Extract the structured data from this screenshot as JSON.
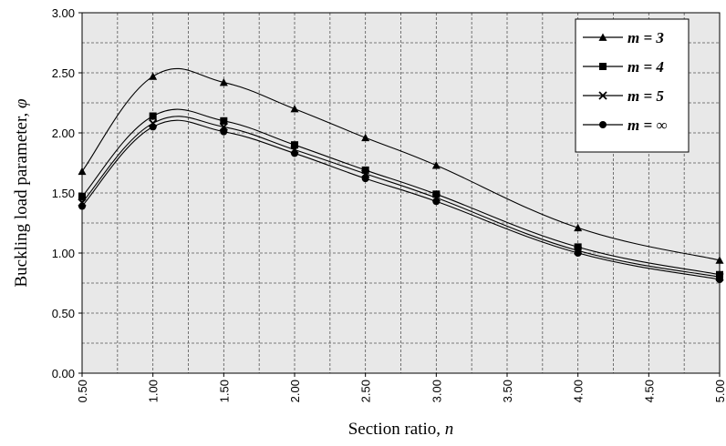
{
  "chart_data": {
    "type": "line",
    "xlabel": "Section ratio, ",
    "xlabel_var": "n",
    "ylabel": "Buckling load parameter, ",
    "ylabel_var": "φ",
    "xlim": [
      0.5,
      5.0
    ],
    "ylim": [
      0.0,
      3.0
    ],
    "x_ticks": [
      "0.50",
      "1.00",
      "1.50",
      "2.00",
      "2.50",
      "3.00",
      "3.50",
      "4.00",
      "4.50",
      "5.00"
    ],
    "y_ticks": [
      "0.00",
      "0.50",
      "1.00",
      "1.50",
      "2.00",
      "2.50",
      "3.00"
    ],
    "grid": true,
    "plot_background": "#e8e8e8",
    "legend_position": "top-right",
    "series": [
      {
        "name": "m = 3",
        "marker": "triangle",
        "x": [
          0.5,
          1.0,
          1.5,
          2.0,
          2.5,
          3.0,
          4.0,
          5.0
        ],
        "y": [
          1.68,
          2.47,
          2.42,
          2.2,
          1.96,
          1.73,
          1.21,
          0.94
        ]
      },
      {
        "name": "m = 4",
        "marker": "square",
        "x": [
          0.5,
          1.0,
          1.5,
          2.0,
          2.5,
          3.0,
          4.0,
          5.0
        ],
        "y": [
          1.47,
          2.14,
          2.1,
          1.9,
          1.69,
          1.49,
          1.05,
          0.82
        ]
      },
      {
        "name": "m = 5",
        "marker": "x",
        "x": [
          0.5,
          1.0,
          1.5,
          2.0,
          2.5,
          3.0,
          4.0,
          5.0
        ],
        "y": [
          1.42,
          2.08,
          2.05,
          1.86,
          1.66,
          1.46,
          1.02,
          0.8
        ]
      },
      {
        "name": "m = ∞",
        "marker": "circle",
        "x": [
          0.5,
          1.0,
          1.5,
          2.0,
          2.5,
          3.0,
          4.0,
          5.0
        ],
        "y": [
          1.39,
          2.05,
          2.01,
          1.83,
          1.62,
          1.43,
          1.0,
          0.78
        ]
      }
    ]
  }
}
